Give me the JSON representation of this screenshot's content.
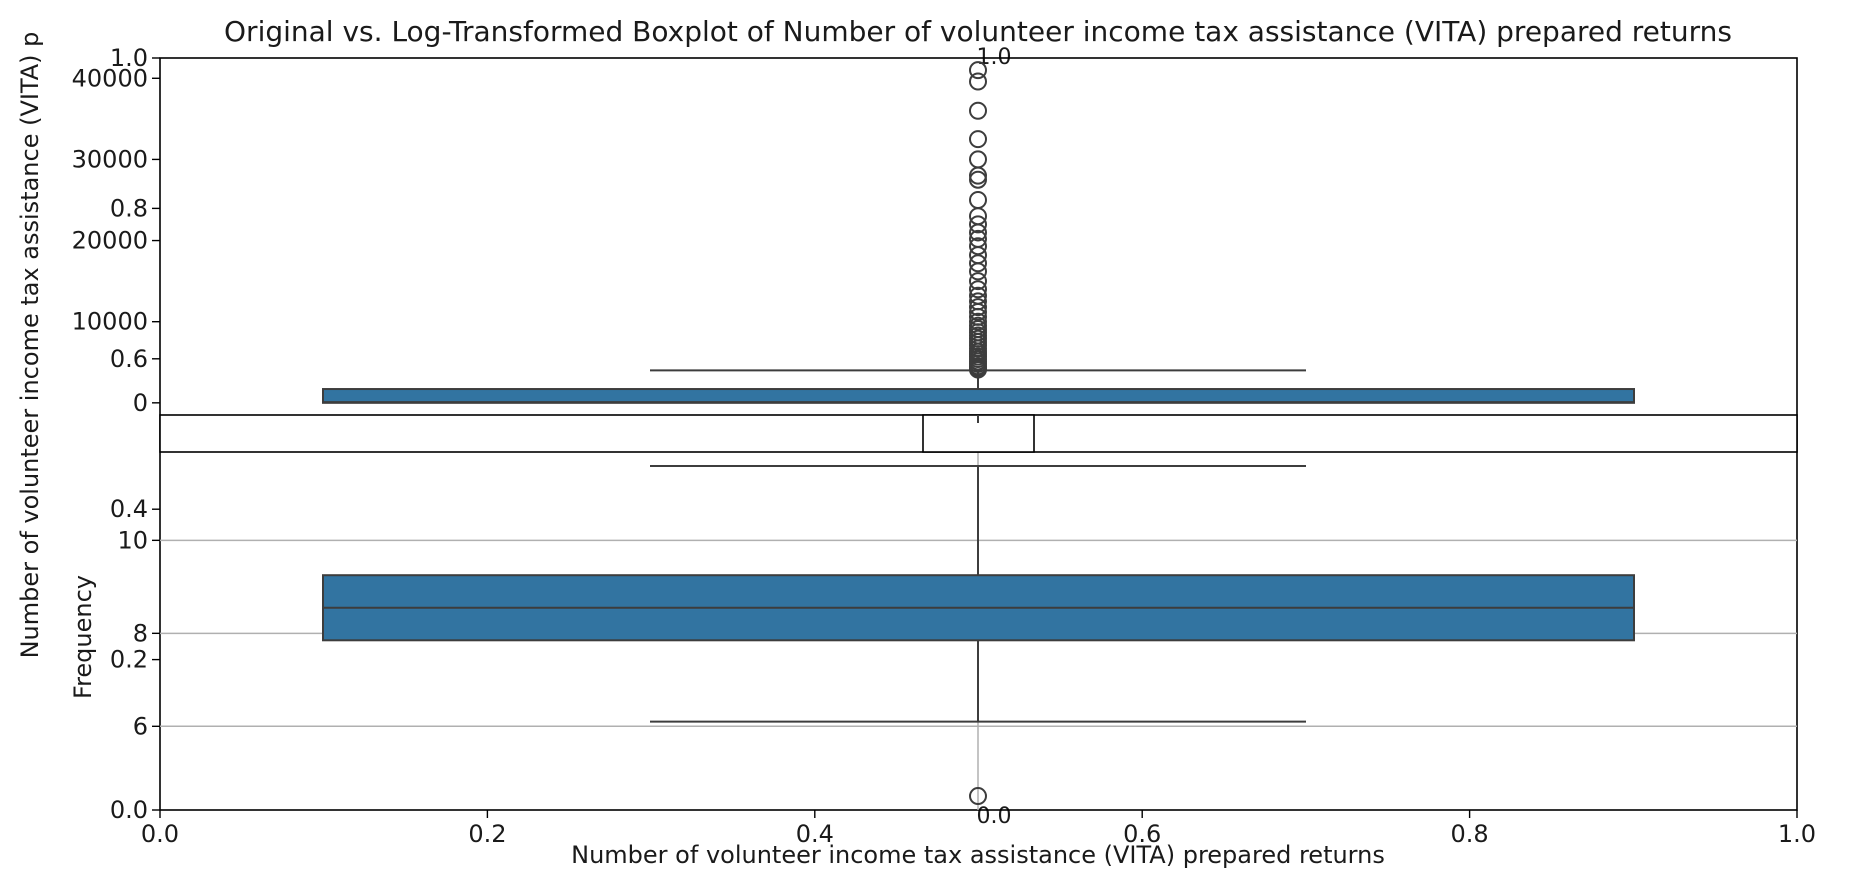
{
  "chart_data": [
    {
      "type": "box",
      "panel": "outer",
      "title": "Original vs. Log-Transformed Boxplot of Number of volunteer income tax assistance (VITA) prepared returns",
      "xlabel": "",
      "ylabel": "Number of volunteer income tax assistance (VITA) p",
      "xlim": [
        0,
        1
      ],
      "ylim": [
        0,
        1
      ],
      "x_ticks": [
        "0.0",
        "0.2",
        "0.4",
        "0.6",
        "0.8",
        "1.0"
      ],
      "y_ticks": [
        "0.0",
        "0.2",
        "0.4",
        "0.6",
        "0.8",
        "1.0"
      ],
      "grid": false
    },
    {
      "type": "box",
      "panel": "original",
      "ylim": [
        -1500,
        42500
      ],
      "y_ticks": [
        0,
        10000,
        20000,
        30000,
        40000
      ],
      "y_tick_labels": [
        "0",
        "10000",
        "20000",
        "30000",
        "40000"
      ],
      "box": {
        "whisker_low": 0,
        "q1": 0,
        "median": 80,
        "q3": 1700,
        "whisker_high": 4000
      },
      "box_color": "#3274a1",
      "outliers": [
        4100,
        4300,
        4500,
        4800,
        5100,
        5400,
        5700,
        6000,
        6300,
        6700,
        7100,
        7500,
        7900,
        8300,
        8700,
        9100,
        9500,
        10000,
        10600,
        11200,
        11800,
        12500,
        13200,
        14000,
        15000,
        16200,
        17200,
        18200,
        19300,
        20200,
        21000,
        22000,
        23000,
        25000,
        27500,
        28000,
        30000,
        32500,
        36000,
        39600,
        41000
      ],
      "grid": false
    },
    {
      "type": "box",
      "panel": "log-transformed",
      "ylabel": "Frequency",
      "ylim": [
        4.2,
        11.9
      ],
      "y_ticks": [
        6,
        8,
        10
      ],
      "y_tick_labels": [
        "6",
        "8",
        "10"
      ],
      "box": {
        "whisker_low": 6.1,
        "q1": 7.85,
        "median": 8.55,
        "q3": 9.25,
        "whisker_high": 11.6
      },
      "box_color": "#3274a1",
      "outliers": [
        4.5
      ],
      "grid": true
    },
    {
      "type": "histogram",
      "panel": "inset",
      "xlabel": "Number of volunteer income tax assistance (VITA) prepared returns",
      "xlim": [
        0,
        1
      ],
      "ylim": [
        0,
        1
      ],
      "x_ticks": [
        "0.0",
        "0.2",
        "0.4",
        "0.6",
        "0.8",
        "1.0"
      ],
      "x_top_label": "1.0",
      "x_bottom_label": "0.0"
    }
  ]
}
